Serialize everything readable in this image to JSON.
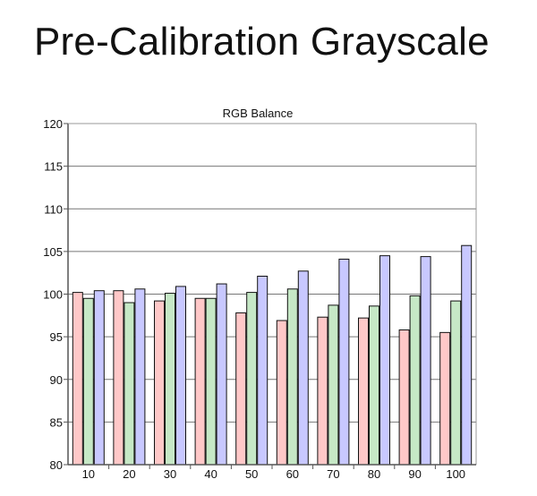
{
  "page": {
    "title": "Pre-Calibration Grayscale"
  },
  "chart_data": {
    "type": "bar",
    "title": "RGB Balance",
    "categories": [
      "10",
      "20",
      "30",
      "40",
      "50",
      "60",
      "70",
      "80",
      "90",
      "100"
    ],
    "series": [
      {
        "color": "#ffc8c8",
        "values": [
          100.2,
          100.4,
          99.2,
          99.5,
          97.8,
          96.9,
          97.3,
          97.2,
          95.8,
          95.5
        ]
      },
      {
        "color": "#c6e8c6",
        "values": [
          99.5,
          99.0,
          100.1,
          99.5,
          100.2,
          100.6,
          98.7,
          98.6,
          99.8,
          99.2
        ]
      },
      {
        "color": "#c8c8ff",
        "values": [
          100.4,
          100.6,
          100.9,
          101.2,
          102.1,
          102.7,
          104.1,
          104.5,
          104.4,
          105.7
        ]
      }
    ],
    "ylim": [
      80,
      120
    ],
    "yticks": [
      80,
      85,
      90,
      95,
      100,
      105,
      110,
      115,
      120
    ],
    "grid": true,
    "xlabel": "",
    "ylabel": ""
  }
}
